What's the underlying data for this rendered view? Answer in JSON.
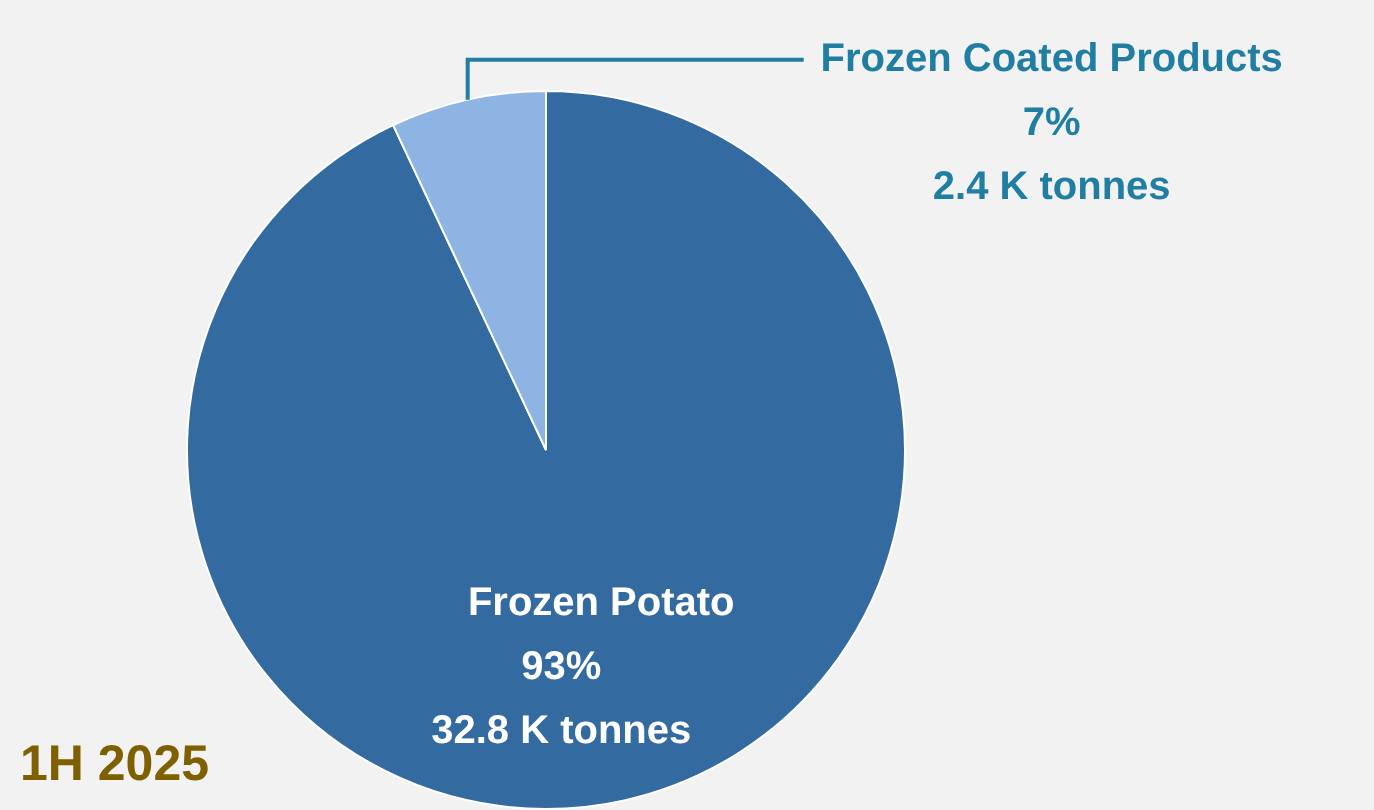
{
  "chart_data": {
    "type": "pie",
    "title": "1H 2025",
    "categories": [
      "Frozen Potato",
      "Frozen Coated Products"
    ],
    "values": [
      93,
      7
    ],
    "colors": [
      "#336a9f",
      "#8db4e2"
    ],
    "value_labels": [
      "93%\n32.8 K tonnes",
      "7%\n2.4 K tonnes"
    ],
    "legend": false
  }
}
